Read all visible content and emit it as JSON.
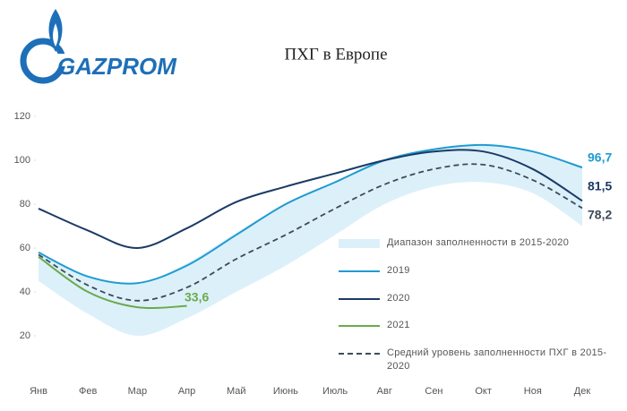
{
  "logo_text": "GAZPROM",
  "chart_data": {
    "type": "line",
    "title": "ПХГ в Европе",
    "categories": [
      "Янв",
      "Фев",
      "Мар",
      "Апр",
      "Май",
      "Июнь",
      "Июль",
      "Авг",
      "Сен",
      "Окт",
      "Ноя",
      "Дек"
    ],
    "ylim": [
      0,
      120
    ],
    "yticks": [
      20,
      40,
      60,
      80,
      100,
      120
    ],
    "grid": false,
    "band": {
      "name": "Диапазон заполненности в 2015-2020",
      "color": "#dcf0fa",
      "lower": [
        45,
        30,
        20,
        28,
        40,
        52,
        66,
        80,
        88,
        90,
        85,
        70
      ],
      "upper": [
        58,
        47,
        44,
        53,
        67,
        80,
        90,
        100,
        105,
        107,
        104,
        97
      ]
    },
    "series": [
      {
        "name": "2019",
        "color": "#1f9bd1",
        "values": [
          58,
          47,
          44,
          52,
          66,
          80,
          90,
          100,
          105,
          107,
          104,
          96.7
        ],
        "value_labels": [
          null,
          null,
          null,
          null,
          null,
          null,
          null,
          null,
          null,
          null,
          null,
          "96,7"
        ]
      },
      {
        "name": "2020",
        "color": "#1b3a66",
        "values": [
          78,
          68,
          60,
          69,
          81,
          88,
          94,
          100,
          104,
          104,
          96,
          81.5
        ],
        "value_labels": [
          null,
          null,
          null,
          null,
          null,
          null,
          null,
          null,
          null,
          null,
          null,
          "81,5"
        ]
      },
      {
        "name": "2021",
        "color": "#6aaa4a",
        "values": [
          56,
          40,
          33,
          33.6,
          null,
          null,
          null,
          null,
          null,
          null,
          null,
          null
        ],
        "value_labels": [
          null,
          null,
          null,
          "33,6",
          null,
          null,
          null,
          null,
          null,
          null,
          null,
          null
        ]
      },
      {
        "name": "Средний уровень заполненности ПХГ в 2015-2020",
        "color": "#3d4a5c",
        "dashed": true,
        "values": [
          57,
          43,
          36,
          42,
          55,
          66,
          78,
          89,
          96,
          98,
          91,
          78.2
        ],
        "value_labels": [
          null,
          null,
          null,
          null,
          null,
          null,
          null,
          null,
          null,
          null,
          null,
          "78,2"
        ]
      }
    ]
  }
}
